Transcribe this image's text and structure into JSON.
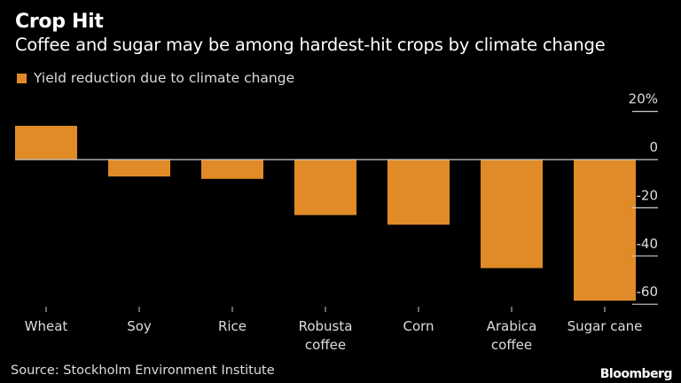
{
  "header": {
    "title": "Crop Hit",
    "subtitle": "Coffee and sugar may be among hardest-hit crops by climate change"
  },
  "footer": {
    "source": "Source: Stockholm Environment Institute",
    "brand": "Bloomberg"
  },
  "colors": {
    "bar": "#e08b28",
    "background": "#000000",
    "axis": "#cccccc"
  },
  "chart_data": {
    "type": "bar",
    "title": "Crop Hit",
    "subtitle": "Coffee and sugar may be among hardest-hit crops by climate change",
    "xlabel": "",
    "ylabel": "",
    "categories": [
      "Wheat",
      "Soy",
      "Rice",
      "Robusta coffee",
      "Corn",
      "Arabica coffee",
      "Sugar cane"
    ],
    "category_lines": [
      [
        "Wheat"
      ],
      [
        "Soy"
      ],
      [
        "Rice"
      ],
      [
        "Robusta",
        "coffee"
      ],
      [
        "Corn"
      ],
      [
        "Arabica",
        "coffee"
      ],
      [
        "Sugar cane"
      ]
    ],
    "series": [
      {
        "name": "Yield reduction due to climate change",
        "values": [
          14,
          -7,
          -8,
          -23,
          -27,
          -45,
          -58.5
        ]
      }
    ],
    "ylim": [
      -60,
      20
    ],
    "yticks": [
      20,
      0,
      -20,
      -40,
      -60
    ],
    "ytick_labels": [
      "20%",
      "0",
      "-20",
      "-40",
      "-60"
    ],
    "legend": {
      "position": "top-left",
      "entries": [
        "Yield reduction due to climate change"
      ]
    },
    "grid": false
  }
}
